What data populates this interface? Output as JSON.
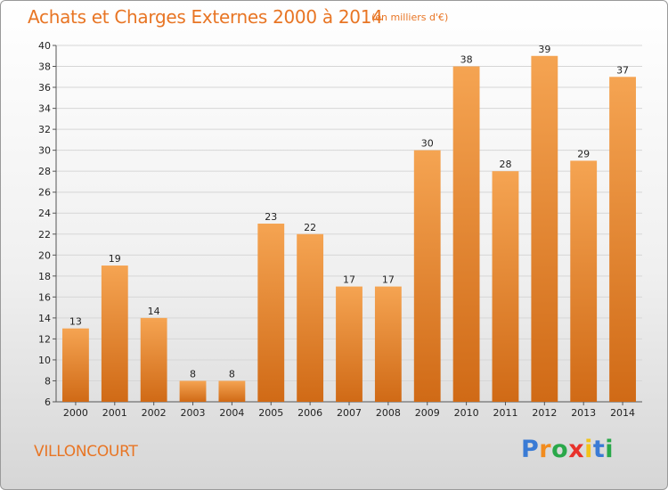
{
  "header": {
    "title": "Achats et Charges Externes 2000 à 2014",
    "unit": "(en milliers d'€)"
  },
  "footer": {
    "commune": "VILLONCOURT",
    "brand": "Proxiti",
    "brand_colors": [
      "#3a7bd5",
      "#f28c1e",
      "#2aa84a",
      "#e8322b",
      "#f2c31a",
      "#3a7bd5",
      "#2aa84a"
    ]
  },
  "colors": {
    "title": "#e87524",
    "bar_top": "#f5a452",
    "bar_bottom": "#d06a16",
    "grid": "#d6d6d6"
  },
  "chart_data": {
    "type": "bar",
    "title": "Achats et Charges Externes 2000 à 2014",
    "xlabel": "",
    "ylabel": "",
    "categories": [
      "2000",
      "2001",
      "2002",
      "2003",
      "2004",
      "2005",
      "2006",
      "2007",
      "2008",
      "2009",
      "2010",
      "2011",
      "2012",
      "2013",
      "2014"
    ],
    "values": [
      13,
      19,
      14,
      8,
      8,
      23,
      22,
      17,
      17,
      30,
      38,
      28,
      39,
      29,
      37
    ],
    "ylim": [
      6,
      40
    ],
    "yticks": [
      6,
      8,
      10,
      12,
      14,
      16,
      18,
      20,
      22,
      24,
      26,
      28,
      30,
      32,
      34,
      36,
      38,
      40
    ],
    "grid": true,
    "data_labels": true
  }
}
